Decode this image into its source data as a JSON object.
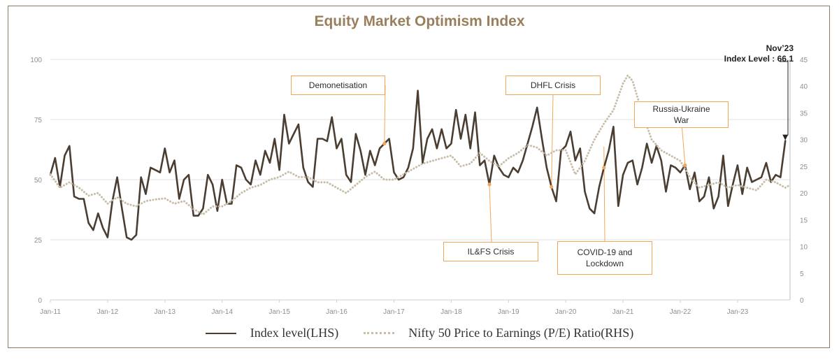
{
  "chart_data": {
    "type": "line",
    "title": "Equity Market Optimism Index",
    "x_ticks": [
      "Jan-11",
      "Jan-12",
      "Jan-13",
      "Jan-14",
      "Jan-15",
      "Jan-16",
      "Jan-17",
      "Jan-18",
      "Jan-19",
      "Jan-20",
      "Jan-21",
      "Jan-22",
      "Jan-23"
    ],
    "y_left_ticks": [
      "0",
      "25",
      "50",
      "75",
      "100"
    ],
    "y_right_ticks": [
      "0",
      "5",
      "10",
      "15",
      "20",
      "25",
      "30",
      "35",
      "40",
      "45"
    ],
    "ylim_left": [
      0,
      100
    ],
    "ylim_right": [
      0,
      45
    ],
    "x_range": [
      "2011-01",
      "2023-12"
    ],
    "series": [
      {
        "name": "Index level(LHS)",
        "axis": "left",
        "color": "#4a3d32",
        "style": "solid",
        "points": [
          [
            "2011-01",
            52
          ],
          [
            "2011-02",
            59
          ],
          [
            "2011-03",
            47
          ],
          [
            "2011-04",
            60
          ],
          [
            "2011-05",
            64
          ],
          [
            "2011-06",
            43
          ],
          [
            "2011-07",
            42
          ],
          [
            "2011-08",
            42
          ],
          [
            "2011-09",
            32
          ],
          [
            "2011-10",
            29
          ],
          [
            "2011-11",
            36
          ],
          [
            "2011-12",
            30
          ],
          [
            "2012-01",
            26
          ],
          [
            "2012-02",
            41
          ],
          [
            "2012-03",
            51
          ],
          [
            "2012-04",
            38
          ],
          [
            "2012-05",
            26
          ],
          [
            "2012-06",
            25
          ],
          [
            "2012-07",
            27
          ],
          [
            "2012-08",
            51
          ],
          [
            "2012-09",
            44
          ],
          [
            "2012-10",
            55
          ],
          [
            "2012-11",
            54
          ],
          [
            "2012-12",
            53
          ],
          [
            "2013-01",
            63
          ],
          [
            "2013-02",
            53
          ],
          [
            "2013-03",
            58
          ],
          [
            "2013-04",
            42
          ],
          [
            "2013-05",
            50
          ],
          [
            "2013-06",
            52
          ],
          [
            "2013-07",
            35
          ],
          [
            "2013-08",
            35
          ],
          [
            "2013-09",
            38
          ],
          [
            "2013-10",
            52
          ],
          [
            "2013-11",
            48
          ],
          [
            "2013-12",
            37
          ],
          [
            "2014-01",
            50
          ],
          [
            "2014-02",
            40
          ],
          [
            "2014-03",
            40
          ],
          [
            "2014-04",
            56
          ],
          [
            "2014-05",
            55
          ],
          [
            "2014-06",
            50
          ],
          [
            "2014-07",
            48
          ],
          [
            "2014-08",
            58
          ],
          [
            "2014-09",
            52
          ],
          [
            "2014-10",
            62
          ],
          [
            "2014-11",
            57
          ],
          [
            "2014-12",
            67
          ],
          [
            "2015-01",
            54
          ],
          [
            "2015-02",
            77
          ],
          [
            "2015-03",
            65
          ],
          [
            "2015-04",
            69
          ],
          [
            "2015-05",
            73
          ],
          [
            "2015-06",
            55
          ],
          [
            "2015-07",
            49
          ],
          [
            "2015-08",
            47
          ],
          [
            "2015-09",
            67
          ],
          [
            "2015-10",
            67
          ],
          [
            "2015-11",
            66
          ],
          [
            "2015-12",
            76
          ],
          [
            "2016-01",
            63
          ],
          [
            "2016-02",
            67
          ],
          [
            "2016-03",
            52
          ],
          [
            "2016-04",
            49
          ],
          [
            "2016-05",
            69
          ],
          [
            "2016-06",
            62
          ],
          [
            "2016-07",
            52
          ],
          [
            "2016-08",
            62
          ],
          [
            "2016-09",
            56
          ],
          [
            "2016-10",
            63
          ],
          [
            "2016-11",
            65
          ],
          [
            "2016-12",
            67
          ],
          [
            "2017-01",
            53
          ],
          [
            "2017-02",
            50
          ],
          [
            "2017-03",
            51
          ],
          [
            "2017-04",
            55
          ],
          [
            "2017-05",
            63
          ],
          [
            "2017-06",
            87
          ],
          [
            "2017-07",
            57
          ],
          [
            "2017-08",
            67
          ],
          [
            "2017-09",
            71
          ],
          [
            "2017-10",
            63
          ],
          [
            "2017-11",
            71
          ],
          [
            "2017-12",
            63
          ],
          [
            "2018-01",
            65
          ],
          [
            "2018-02",
            79
          ],
          [
            "2018-03",
            67
          ],
          [
            "2018-04",
            77
          ],
          [
            "2018-05",
            63
          ],
          [
            "2018-06",
            78
          ],
          [
            "2018-07",
            56
          ],
          [
            "2018-08",
            58
          ],
          [
            "2018-09",
            48
          ],
          [
            "2018-10",
            60
          ],
          [
            "2018-11",
            55
          ],
          [
            "2018-12",
            52
          ],
          [
            "2019-01",
            51
          ],
          [
            "2019-02",
            55
          ],
          [
            "2019-03",
            53
          ],
          [
            "2019-04",
            58
          ],
          [
            "2019-05",
            65
          ],
          [
            "2019-06",
            72
          ],
          [
            "2019-07",
            80
          ],
          [
            "2019-08",
            67
          ],
          [
            "2019-09",
            55
          ],
          [
            "2019-10",
            47
          ],
          [
            "2019-11",
            41
          ],
          [
            "2019-12",
            62
          ],
          [
            "2020-01",
            64
          ],
          [
            "2020-02",
            70
          ],
          [
            "2020-03",
            58
          ],
          [
            "2020-04",
            63
          ],
          [
            "2020-05",
            45
          ],
          [
            "2020-06",
            38
          ],
          [
            "2020-07",
            36
          ],
          [
            "2020-08",
            47
          ],
          [
            "2020-09",
            55
          ],
          [
            "2020-10",
            62
          ],
          [
            "2020-11",
            72
          ],
          [
            "2020-12",
            39
          ],
          [
            "2021-01",
            52
          ],
          [
            "2021-02",
            57
          ],
          [
            "2021-03",
            58
          ],
          [
            "2021-04",
            48
          ],
          [
            "2021-05",
            55
          ],
          [
            "2021-06",
            65
          ],
          [
            "2021-07",
            57
          ],
          [
            "2021-08",
            64
          ],
          [
            "2021-09",
            58
          ],
          [
            "2021-10",
            45
          ],
          [
            "2021-11",
            56
          ],
          [
            "2021-12",
            55
          ],
          [
            "2022-01",
            53
          ],
          [
            "2022-02",
            56
          ],
          [
            "2022-03",
            46
          ],
          [
            "2022-04",
            53
          ],
          [
            "2022-05",
            41
          ],
          [
            "2022-06",
            43
          ],
          [
            "2022-07",
            51
          ],
          [
            "2022-08",
            38
          ],
          [
            "2022-09",
            43
          ],
          [
            "2022-10",
            60
          ],
          [
            "2022-11",
            39
          ],
          [
            "2022-12",
            48
          ],
          [
            "2023-01",
            56
          ],
          [
            "2023-02",
            44
          ],
          [
            "2023-03",
            55
          ],
          [
            "2023-04",
            49
          ],
          [
            "2023-05",
            50
          ],
          [
            "2023-06",
            51
          ],
          [
            "2023-07",
            57
          ],
          [
            "2023-08",
            49
          ],
          [
            "2023-09",
            52
          ],
          [
            "2023-10",
            51
          ],
          [
            "2023-11",
            66.1
          ]
        ]
      },
      {
        "name": "Nifty 50 Price to Earnings (P/E) Ratio(RHS)",
        "axis": "right",
        "color": "#c8bda8",
        "style": "dotted",
        "points": [
          [
            "2011-01",
            23.5
          ],
          [
            "2011-03",
            21
          ],
          [
            "2011-05",
            22
          ],
          [
            "2011-07",
            21
          ],
          [
            "2011-09",
            19.5
          ],
          [
            "2011-11",
            20
          ],
          [
            "2012-01",
            18
          ],
          [
            "2012-03",
            19.2
          ],
          [
            "2012-05",
            18
          ],
          [
            "2012-07",
            17.5
          ],
          [
            "2012-09",
            18.5
          ],
          [
            "2012-11",
            18.8
          ],
          [
            "2013-01",
            19
          ],
          [
            "2013-03",
            18
          ],
          [
            "2013-05",
            18.5
          ],
          [
            "2013-07",
            17
          ],
          [
            "2013-09",
            16
          ],
          [
            "2013-11",
            17.5
          ],
          [
            "2014-01",
            17.5
          ],
          [
            "2014-03",
            18.5
          ],
          [
            "2014-05",
            20
          ],
          [
            "2014-07",
            21
          ],
          [
            "2014-09",
            21.5
          ],
          [
            "2014-11",
            22.5
          ],
          [
            "2015-01",
            23
          ],
          [
            "2015-03",
            24
          ],
          [
            "2015-05",
            23
          ],
          [
            "2015-07",
            23
          ],
          [
            "2015-09",
            22
          ],
          [
            "2015-11",
            22
          ],
          [
            "2016-01",
            21
          ],
          [
            "2016-03",
            20
          ],
          [
            "2016-05",
            21.5
          ],
          [
            "2016-07",
            23
          ],
          [
            "2016-09",
            24
          ],
          [
            "2016-11",
            22.5
          ],
          [
            "2017-01",
            22.5
          ],
          [
            "2017-03",
            23.5
          ],
          [
            "2017-05",
            24.5
          ],
          [
            "2017-07",
            25.5
          ],
          [
            "2017-09",
            26
          ],
          [
            "2017-11",
            26.5
          ],
          [
            "2018-01",
            27
          ],
          [
            "2018-03",
            25
          ],
          [
            "2018-05",
            25.5
          ],
          [
            "2018-07",
            27.5
          ],
          [
            "2018-09",
            26
          ],
          [
            "2018-11",
            25
          ],
          [
            "2019-01",
            26.5
          ],
          [
            "2019-03",
            27.5
          ],
          [
            "2019-05",
            29
          ],
          [
            "2019-07",
            28.5
          ],
          [
            "2019-09",
            27
          ],
          [
            "2019-11",
            28
          ],
          [
            "2020-01",
            28
          ],
          [
            "2020-03",
            23.5
          ],
          [
            "2020-05",
            26
          ],
          [
            "2020-07",
            30
          ],
          [
            "2020-09",
            33
          ],
          [
            "2020-11",
            35.5
          ],
          [
            "2021-01",
            40.5
          ],
          [
            "2021-02",
            42
          ],
          [
            "2021-03",
            41
          ],
          [
            "2021-05",
            35
          ],
          [
            "2021-07",
            30
          ],
          [
            "2021-09",
            28
          ],
          [
            "2021-11",
            27
          ],
          [
            "2022-01",
            26
          ],
          [
            "2022-03",
            23
          ],
          [
            "2022-05",
            21
          ],
          [
            "2022-07",
            21.5
          ],
          [
            "2022-09",
            22
          ],
          [
            "2022-11",
            21
          ],
          [
            "2023-01",
            21.5
          ],
          [
            "2023-03",
            21
          ],
          [
            "2023-05",
            20.5
          ],
          [
            "2023-07",
            22.5
          ],
          [
            "2023-09",
            22
          ],
          [
            "2023-11",
            21
          ],
          [
            "2023-12",
            21.5
          ]
        ]
      }
    ],
    "annotations": [
      {
        "label": "Demonetisation",
        "date": "2016-11"
      },
      {
        "label": "DHFL Crisis",
        "date": "2019-10"
      },
      {
        "label": "Russia-Ukraine War",
        "date": "2022-02"
      },
      {
        "label": "IL&FS Crisis",
        "date": "2018-09"
      },
      {
        "label": "COVID-19 and Lockdown",
        "date": "2020-09"
      }
    ],
    "callout": {
      "line1": "Nov’23",
      "line2": "Index Level : 66.1"
    },
    "legend_placement": "bottom-center",
    "grid": "horizontal"
  }
}
